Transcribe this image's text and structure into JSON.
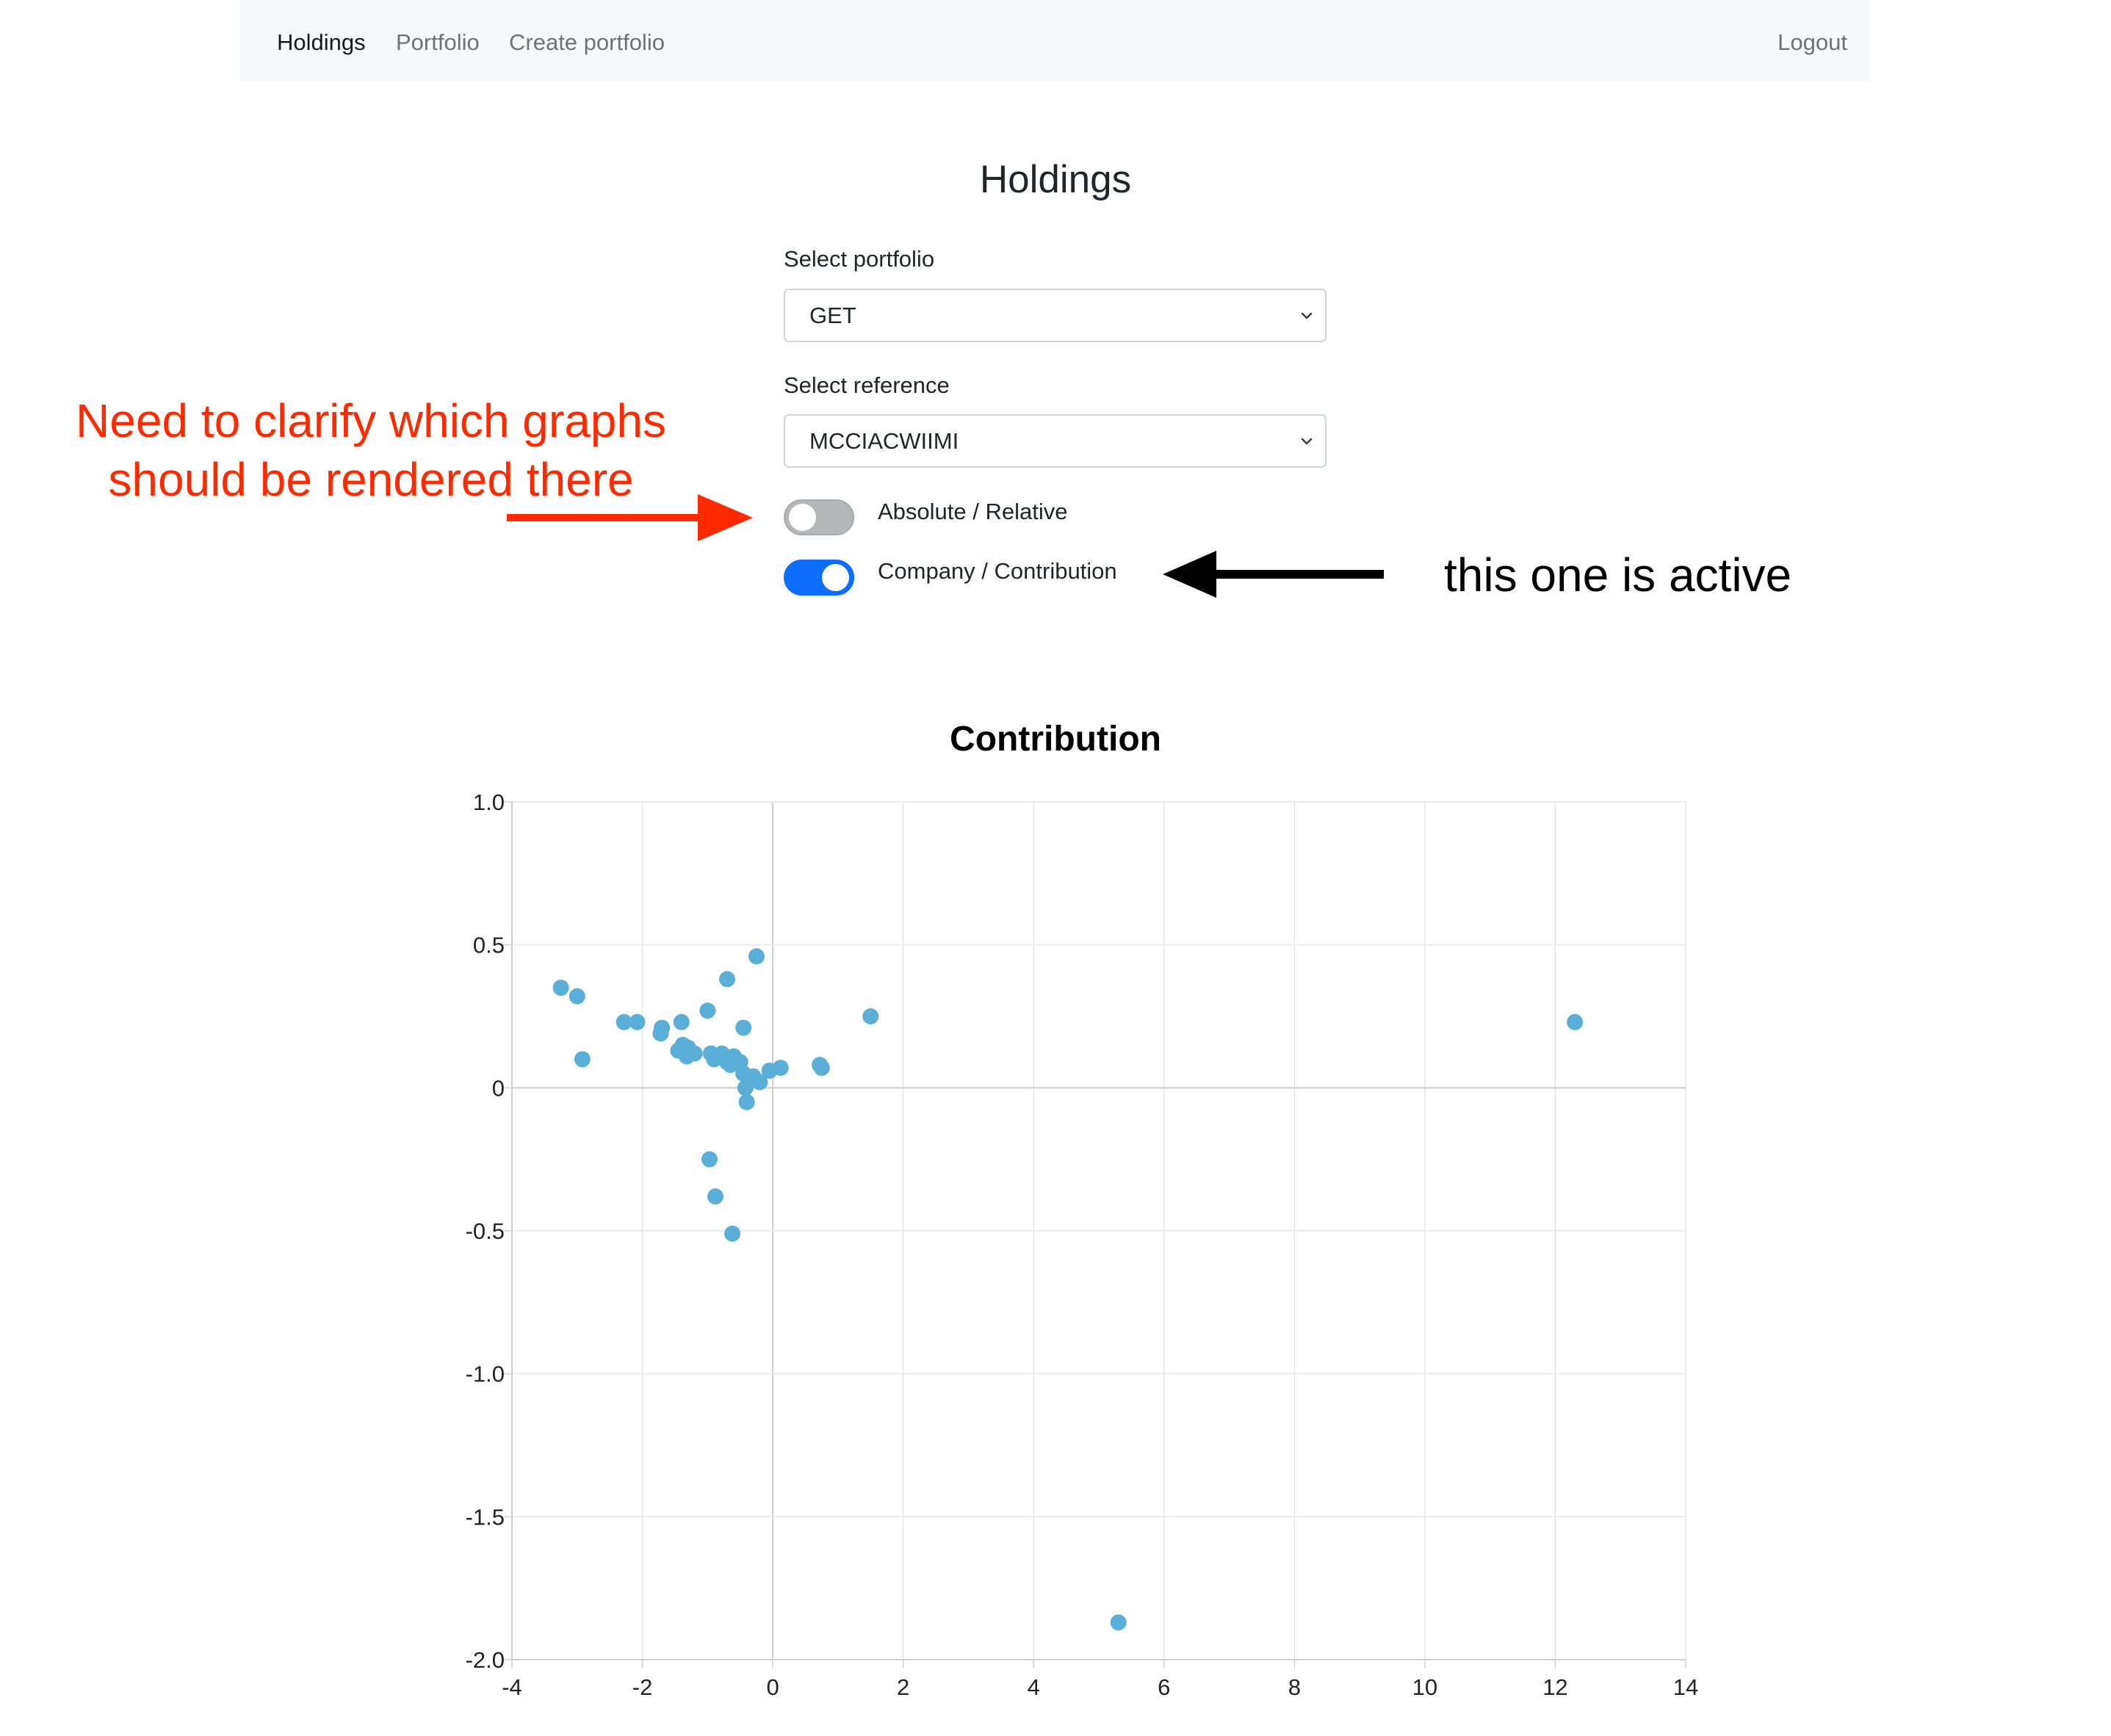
{
  "nav": {
    "items": [
      {
        "label": "Holdings",
        "active": true
      },
      {
        "label": "Portfolio",
        "active": false
      },
      {
        "label": "Create portfolio",
        "active": false
      }
    ],
    "logout_label": "Logout"
  },
  "main": {
    "title": "Holdings",
    "portfolio": {
      "label": "Select portfolio",
      "value": "GET"
    },
    "reference": {
      "label": "Select reference",
      "value": "MCCIACWIIMI"
    },
    "toggles": [
      {
        "label": "Absolute / Relative",
        "checked": false
      },
      {
        "label": "Company / Contribution",
        "checked": true
      }
    ]
  },
  "annotations": {
    "red_note": [
      "Need to clarify which graphs",
      "should be rendered there"
    ],
    "black_note": "this one is active",
    "red_color": "#ff2a00",
    "black_color": "#000000"
  },
  "colors": {
    "accent": "#0d6efd",
    "point": "#5aafd9",
    "grid": "#e6e6e6"
  },
  "chart_data": {
    "type": "scatter",
    "title": "Contribution",
    "xlim": [
      -4,
      14
    ],
    "ylim": [
      -2,
      1
    ],
    "xticks": [
      -4,
      -2,
      0,
      2,
      4,
      6,
      8,
      10,
      12,
      14
    ],
    "yticks": [
      1.0,
      0.5,
      0,
      -0.5,
      -1.0,
      -1.5,
      -2.0
    ],
    "ytick_labels": [
      "1.0",
      "0.5",
      "0",
      "-0.5",
      "-1.0",
      "-1.5",
      "-2.0"
    ],
    "grid": true,
    "points": [
      [
        -3.25,
        0.35
      ],
      [
        -3.0,
        0.32
      ],
      [
        -2.92,
        0.1
      ],
      [
        -2.28,
        0.23
      ],
      [
        -2.08,
        0.23
      ],
      [
        -1.7,
        0.21
      ],
      [
        -1.72,
        0.19
      ],
      [
        -1.4,
        0.23
      ],
      [
        -1.45,
        0.13
      ],
      [
        -1.38,
        0.15
      ],
      [
        -1.3,
        0.14
      ],
      [
        -1.32,
        0.11
      ],
      [
        -1.2,
        0.12
      ],
      [
        -1.0,
        0.27
      ],
      [
        -0.95,
        0.12
      ],
      [
        -0.9,
        0.1
      ],
      [
        -0.85,
        0.11
      ],
      [
        -0.78,
        0.12
      ],
      [
        -0.7,
        0.09
      ],
      [
        -0.65,
        0.08
      ],
      [
        -0.6,
        0.11
      ],
      [
        -0.7,
        0.38
      ],
      [
        -0.25,
        0.46
      ],
      [
        -0.45,
        0.21
      ],
      [
        -0.5,
        0.09
      ],
      [
        -0.45,
        0.05
      ],
      [
        -0.3,
        0.04
      ],
      [
        -0.2,
        0.02
      ],
      [
        -0.05,
        0.06
      ],
      [
        0.12,
        0.07
      ],
      [
        -0.42,
        0.0
      ],
      [
        -0.4,
        -0.05
      ],
      [
        0.72,
        0.08
      ],
      [
        0.75,
        0.07
      ],
      [
        1.5,
        0.25
      ],
      [
        -0.97,
        -0.25
      ],
      [
        -0.88,
        -0.38
      ],
      [
        -0.62,
        -0.51
      ],
      [
        5.3,
        -1.87
      ],
      [
        12.3,
        0.23
      ]
    ]
  }
}
